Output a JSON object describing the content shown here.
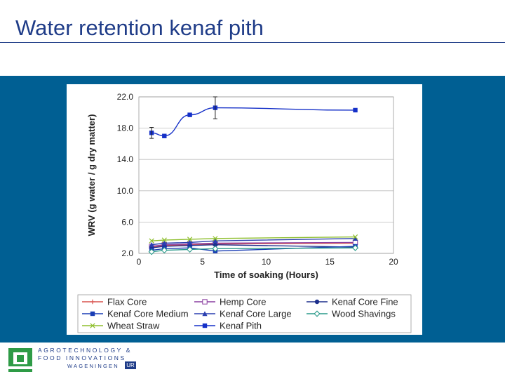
{
  "slide": {
    "title": "Water retention kenaf pith"
  },
  "colors": {
    "title": "#1f3c88",
    "band": "#005f93",
    "logo_green": "#2e9b46",
    "logo_blue": "#1f3c88"
  },
  "logo": {
    "line1": "AGROTECHNOLOGY &",
    "line2": "FOOD INNOVATIONS",
    "line3": "WAGENINGEN",
    "badge": "UR"
  },
  "chart_data": {
    "type": "line",
    "xlabel": "Time of soaking (Hours)",
    "ylabel": "WRV (g water / g dry matter)",
    "xlim": [
      0,
      20
    ],
    "ylim": [
      2.0,
      22.0
    ],
    "x_ticks": [
      "0",
      "5",
      "10",
      "15",
      "20"
    ],
    "y_ticks": [
      "22.0",
      "18.0",
      "14.0",
      "10.0",
      "6.0",
      "2.0"
    ],
    "grid": "horizontal",
    "legend_position": "bottom",
    "series": [
      {
        "name": "Flax Core",
        "color": "#d9534f",
        "marker": "plus",
        "x": [
          1,
          2,
          4,
          6,
          17
        ],
        "y": [
          2.8,
          3.0,
          3.1,
          3.2,
          3.3
        ]
      },
      {
        "name": "Hemp Core",
        "color": "#8a3fa0",
        "marker": "square-open",
        "x": [
          1,
          2,
          4,
          6,
          17
        ],
        "y": [
          2.9,
          3.1,
          3.2,
          3.3,
          3.4
        ]
      },
      {
        "name": "Kenaf Core Fine",
        "color": "#1d2f8c",
        "marker": "dot",
        "x": [
          1,
          2,
          4,
          6,
          17
        ],
        "y": [
          2.7,
          2.9,
          3.0,
          3.1,
          2.8
        ]
      },
      {
        "name": "Kenaf Core Medium",
        "color": "#1a3db5",
        "marker": "square",
        "x": [
          1,
          2,
          4,
          6,
          17
        ],
        "y": [
          2.4,
          2.6,
          2.7,
          2.3,
          2.9
        ]
      },
      {
        "name": "Kenaf Core Large",
        "color": "#2a3fb0",
        "marker": "triangle",
        "x": [
          1,
          2,
          4,
          6,
          17
        ],
        "y": [
          3.1,
          3.3,
          3.4,
          3.6,
          3.9
        ]
      },
      {
        "name": "Wood Shavings",
        "color": "#2a9a8a",
        "marker": "diamond",
        "x": [
          1,
          2,
          4,
          6,
          17
        ],
        "y": [
          2.2,
          2.4,
          2.5,
          2.6,
          2.7
        ]
      },
      {
        "name": "Wheat Straw",
        "color": "#8fbf2f",
        "marker": "x",
        "x": [
          1,
          2,
          4,
          6,
          17
        ],
        "y": [
          3.6,
          3.7,
          3.8,
          3.9,
          4.1
        ]
      },
      {
        "name": "Kenaf Pith",
        "color": "#1530c8",
        "marker": "square",
        "x": [
          1,
          2,
          4,
          6,
          17
        ],
        "y": [
          17.4,
          17.0,
          19.7,
          20.6,
          20.3
        ]
      }
    ]
  }
}
